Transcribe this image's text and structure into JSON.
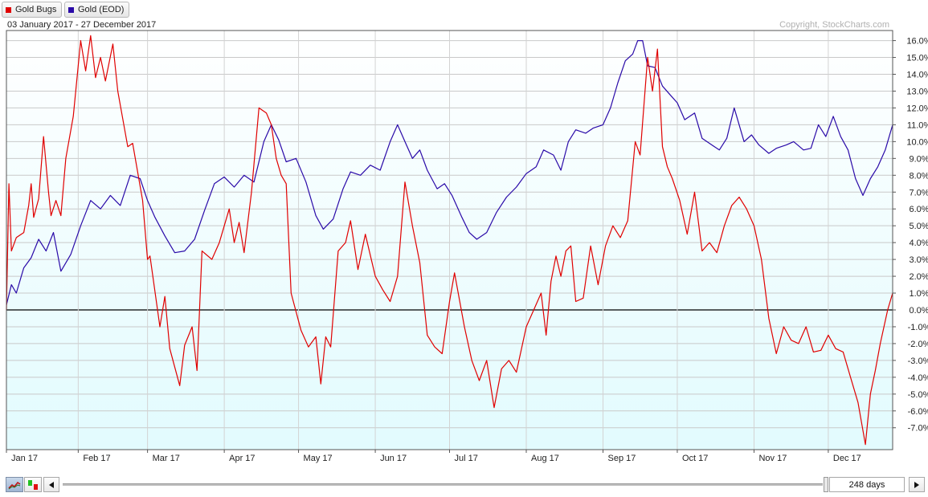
{
  "legend": [
    {
      "label": "Gold Bugs",
      "color": "#e00000"
    },
    {
      "label": "Gold (EOD)",
      "color": "#2a0aa8"
    }
  ],
  "date_range": "03 January 2017 - 27 December 2017",
  "copyright": "Copyright, StockCharts.com",
  "controls": {
    "days": "248 days",
    "scroll_left_icon": "triangle-left-icon",
    "scroll_right_icon": "triangle-right-icon",
    "line_chart_icon": "line-chart-icon",
    "candlestick_icon": "candlestick-icon"
  },
  "chart_data": {
    "type": "line",
    "ylim": [
      -8.3,
      16.6
    ],
    "y_ticks": [
      16,
      15,
      14,
      13,
      12,
      11,
      10,
      9,
      8,
      7,
      6,
      5,
      4,
      3,
      2,
      1,
      0,
      -1,
      -2,
      -3,
      -4,
      -5,
      -6,
      -7
    ],
    "y_tick_labels": [
      "16.0%",
      "15.0%",
      "14.0%",
      "13.0%",
      "12.0%",
      "11.0%",
      "10.0%",
      "9.0%",
      "8.0%",
      "7.0%",
      "6.0%",
      "5.0%",
      "4.0%",
      "3.0%",
      "2.0%",
      "1.0%",
      "0.0%",
      "-1.0%",
      "-2.0%",
      "-3.0%",
      "-4.0%",
      "-5.0%",
      "-6.0%",
      "-7.0%"
    ],
    "x_ticks": [
      "Jan 17",
      "Feb 17",
      "Mar 17",
      "Apr 17",
      "May 17",
      "Jun 17",
      "Jul 17",
      "Aug 17",
      "Sep 17",
      "Oct 17",
      "Nov 17",
      "Dec 17"
    ],
    "x_range": [
      "2017-01-03",
      "2017-12-27"
    ],
    "grid": true,
    "baseline": 0,
    "series": [
      {
        "name": "Gold Bugs",
        "color": "#e00000",
        "points": [
          [
            "2017-01-03",
            0.0
          ],
          [
            "2017-01-04",
            7.5
          ],
          [
            "2017-01-05",
            3.5
          ],
          [
            "2017-01-07",
            4.3
          ],
          [
            "2017-01-10",
            4.6
          ],
          [
            "2017-01-12",
            6.2
          ],
          [
            "2017-01-13",
            7.5
          ],
          [
            "2017-01-14",
            5.5
          ],
          [
            "2017-01-16",
            6.6
          ],
          [
            "2017-01-18",
            10.3
          ],
          [
            "2017-01-20",
            7.0
          ],
          [
            "2017-01-21",
            5.6
          ],
          [
            "2017-01-23",
            6.5
          ],
          [
            "2017-01-25",
            5.6
          ],
          [
            "2017-01-27",
            9.0
          ],
          [
            "2017-01-30",
            11.5
          ],
          [
            "2017-02-02",
            16.0
          ],
          [
            "2017-02-04",
            14.2
          ],
          [
            "2017-02-06",
            16.3
          ],
          [
            "2017-02-08",
            13.8
          ],
          [
            "2017-02-10",
            15.0
          ],
          [
            "2017-02-12",
            13.6
          ],
          [
            "2017-02-15",
            15.8
          ],
          [
            "2017-02-17",
            13.0
          ],
          [
            "2017-02-21",
            9.7
          ],
          [
            "2017-02-23",
            9.9
          ],
          [
            "2017-02-27",
            6.5
          ],
          [
            "2017-03-01",
            3.0
          ],
          [
            "2017-03-02",
            3.2
          ],
          [
            "2017-03-06",
            -1.0
          ],
          [
            "2017-03-08",
            0.8
          ],
          [
            "2017-03-10",
            -2.3
          ],
          [
            "2017-03-14",
            -4.5
          ],
          [
            "2017-03-16",
            -2.1
          ],
          [
            "2017-03-19",
            -1.0
          ],
          [
            "2017-03-21",
            -3.6
          ],
          [
            "2017-03-23",
            3.5
          ],
          [
            "2017-03-27",
            3.0
          ],
          [
            "2017-03-30",
            4.0
          ],
          [
            "2017-04-03",
            6.0
          ],
          [
            "2017-04-05",
            4.0
          ],
          [
            "2017-04-07",
            5.2
          ],
          [
            "2017-04-09",
            3.4
          ],
          [
            "2017-04-12",
            7.0
          ],
          [
            "2017-04-15",
            12.0
          ],
          [
            "2017-04-18",
            11.7
          ],
          [
            "2017-04-20",
            11.0
          ],
          [
            "2017-04-22",
            9.0
          ],
          [
            "2017-04-24",
            8.0
          ],
          [
            "2017-04-26",
            7.5
          ],
          [
            "2017-04-28",
            1.0
          ],
          [
            "2017-05-02",
            -1.2
          ],
          [
            "2017-05-05",
            -2.2
          ],
          [
            "2017-05-08",
            -1.6
          ],
          [
            "2017-05-10",
            -4.4
          ],
          [
            "2017-05-12",
            -1.6
          ],
          [
            "2017-05-14",
            -2.2
          ],
          [
            "2017-05-17",
            3.5
          ],
          [
            "2017-05-20",
            4.0
          ],
          [
            "2017-05-22",
            5.3
          ],
          [
            "2017-05-25",
            2.4
          ],
          [
            "2017-05-28",
            4.5
          ],
          [
            "2017-06-01",
            2.0
          ],
          [
            "2017-06-04",
            1.2
          ],
          [
            "2017-06-07",
            0.5
          ],
          [
            "2017-06-10",
            2.0
          ],
          [
            "2017-06-13",
            7.6
          ],
          [
            "2017-06-16",
            5.0
          ],
          [
            "2017-06-19",
            2.8
          ],
          [
            "2017-06-22",
            -1.5
          ],
          [
            "2017-06-25",
            -2.2
          ],
          [
            "2017-06-28",
            -2.6
          ],
          [
            "2017-07-01",
            0.5
          ],
          [
            "2017-07-03",
            2.2
          ],
          [
            "2017-07-07",
            -1.0
          ],
          [
            "2017-07-10",
            -3.0
          ],
          [
            "2017-07-13",
            -4.2
          ],
          [
            "2017-07-16",
            -3.0
          ],
          [
            "2017-07-19",
            -5.8
          ],
          [
            "2017-07-22",
            -3.5
          ],
          [
            "2017-07-25",
            -3.0
          ],
          [
            "2017-07-28",
            -3.7
          ],
          [
            "2017-08-01",
            -1.0
          ],
          [
            "2017-08-04",
            0.0
          ],
          [
            "2017-08-07",
            1.0
          ],
          [
            "2017-08-09",
            -1.5
          ],
          [
            "2017-08-11",
            1.7
          ],
          [
            "2017-08-13",
            3.2
          ],
          [
            "2017-08-15",
            2.0
          ],
          [
            "2017-08-17",
            3.5
          ],
          [
            "2017-08-19",
            3.8
          ],
          [
            "2017-08-21",
            0.5
          ],
          [
            "2017-08-24",
            0.7
          ],
          [
            "2017-08-27",
            3.8
          ],
          [
            "2017-08-30",
            1.5
          ],
          [
            "2017-09-02",
            3.8
          ],
          [
            "2017-09-05",
            5.0
          ],
          [
            "2017-09-08",
            4.3
          ],
          [
            "2017-09-11",
            5.3
          ],
          [
            "2017-09-14",
            10.0
          ],
          [
            "2017-09-16",
            9.2
          ],
          [
            "2017-09-19",
            15.0
          ],
          [
            "2017-09-21",
            13.0
          ],
          [
            "2017-09-23",
            15.5
          ],
          [
            "2017-09-25",
            9.7
          ],
          [
            "2017-09-27",
            8.5
          ],
          [
            "2017-09-29",
            7.8
          ],
          [
            "2017-10-02",
            6.5
          ],
          [
            "2017-10-05",
            4.5
          ],
          [
            "2017-10-08",
            7.0
          ],
          [
            "2017-10-11",
            3.5
          ],
          [
            "2017-10-14",
            4.0
          ],
          [
            "2017-10-17",
            3.4
          ],
          [
            "2017-10-20",
            5.0
          ],
          [
            "2017-10-23",
            6.2
          ],
          [
            "2017-10-26",
            6.7
          ],
          [
            "2017-10-29",
            6.0
          ],
          [
            "2017-11-01",
            5.0
          ],
          [
            "2017-11-04",
            3.0
          ],
          [
            "2017-11-07",
            -0.5
          ],
          [
            "2017-11-10",
            -2.6
          ],
          [
            "2017-11-13",
            -1.0
          ],
          [
            "2017-11-16",
            -1.8
          ],
          [
            "2017-11-19",
            -2.0
          ],
          [
            "2017-11-22",
            -1.0
          ],
          [
            "2017-11-25",
            -2.5
          ],
          [
            "2017-11-28",
            -2.4
          ],
          [
            "2017-12-01",
            -1.5
          ],
          [
            "2017-12-04",
            -2.3
          ],
          [
            "2017-12-07",
            -2.5
          ],
          [
            "2017-12-10",
            -4.0
          ],
          [
            "2017-12-13",
            -5.5
          ],
          [
            "2017-12-16",
            -8.0
          ],
          [
            "2017-12-18",
            -5.0
          ],
          [
            "2017-12-20",
            -3.6
          ],
          [
            "2017-12-22",
            -2.0
          ],
          [
            "2017-12-25",
            0.0
          ],
          [
            "2017-12-27",
            1.0
          ]
        ]
      },
      {
        "name": "Gold (EOD)",
        "color": "#2a0aa8",
        "points": [
          [
            "2017-01-03",
            0.3
          ],
          [
            "2017-01-05",
            1.5
          ],
          [
            "2017-01-07",
            1.0
          ],
          [
            "2017-01-10",
            2.5
          ],
          [
            "2017-01-13",
            3.1
          ],
          [
            "2017-01-16",
            4.2
          ],
          [
            "2017-01-19",
            3.5
          ],
          [
            "2017-01-22",
            4.6
          ],
          [
            "2017-01-25",
            2.3
          ],
          [
            "2017-01-29",
            3.3
          ],
          [
            "2017-02-02",
            5.0
          ],
          [
            "2017-02-06",
            6.5
          ],
          [
            "2017-02-10",
            6.0
          ],
          [
            "2017-02-14",
            6.8
          ],
          [
            "2017-02-18",
            6.2
          ],
          [
            "2017-02-22",
            8.0
          ],
          [
            "2017-02-26",
            7.8
          ],
          [
            "2017-03-01",
            6.5
          ],
          [
            "2017-03-04",
            5.5
          ],
          [
            "2017-03-08",
            4.4
          ],
          [
            "2017-03-12",
            3.4
          ],
          [
            "2017-03-16",
            3.5
          ],
          [
            "2017-03-20",
            4.2
          ],
          [
            "2017-03-24",
            5.9
          ],
          [
            "2017-03-28",
            7.5
          ],
          [
            "2017-04-01",
            7.9
          ],
          [
            "2017-04-05",
            7.3
          ],
          [
            "2017-04-09",
            8.0
          ],
          [
            "2017-04-13",
            7.6
          ],
          [
            "2017-04-17",
            10.0
          ],
          [
            "2017-04-20",
            11.0
          ],
          [
            "2017-04-23",
            10.1
          ],
          [
            "2017-04-26",
            8.8
          ],
          [
            "2017-04-30",
            9.0
          ],
          [
            "2017-05-04",
            7.6
          ],
          [
            "2017-05-08",
            5.6
          ],
          [
            "2017-05-11",
            4.8
          ],
          [
            "2017-05-15",
            5.4
          ],
          [
            "2017-05-19",
            7.2
          ],
          [
            "2017-05-22",
            8.2
          ],
          [
            "2017-05-26",
            8.0
          ],
          [
            "2017-05-30",
            8.6
          ],
          [
            "2017-06-03",
            8.3
          ],
          [
            "2017-06-07",
            10.0
          ],
          [
            "2017-06-10",
            11.0
          ],
          [
            "2017-06-13",
            10.0
          ],
          [
            "2017-06-16",
            9.0
          ],
          [
            "2017-06-19",
            9.5
          ],
          [
            "2017-06-22",
            8.3
          ],
          [
            "2017-06-26",
            7.2
          ],
          [
            "2017-06-29",
            7.5
          ],
          [
            "2017-07-02",
            6.8
          ],
          [
            "2017-07-06",
            5.5
          ],
          [
            "2017-07-09",
            4.6
          ],
          [
            "2017-07-12",
            4.2
          ],
          [
            "2017-07-16",
            4.6
          ],
          [
            "2017-07-20",
            5.8
          ],
          [
            "2017-07-24",
            6.7
          ],
          [
            "2017-07-28",
            7.3
          ],
          [
            "2017-08-01",
            8.1
          ],
          [
            "2017-08-05",
            8.5
          ],
          [
            "2017-08-08",
            9.5
          ],
          [
            "2017-08-12",
            9.2
          ],
          [
            "2017-08-15",
            8.3
          ],
          [
            "2017-08-18",
            10.0
          ],
          [
            "2017-08-21",
            10.7
          ],
          [
            "2017-08-25",
            10.5
          ],
          [
            "2017-08-28",
            10.8
          ],
          [
            "2017-09-01",
            11.0
          ],
          [
            "2017-09-04",
            12.0
          ],
          [
            "2017-09-07",
            13.5
          ],
          [
            "2017-09-10",
            14.8
          ],
          [
            "2017-09-13",
            15.2
          ],
          [
            "2017-09-15",
            16.0
          ],
          [
            "2017-09-17",
            16.0
          ],
          [
            "2017-09-19",
            14.5
          ],
          [
            "2017-09-22",
            14.4
          ],
          [
            "2017-09-25",
            13.3
          ],
          [
            "2017-09-28",
            12.8
          ],
          [
            "2017-10-01",
            12.3
          ],
          [
            "2017-10-04",
            11.3
          ],
          [
            "2017-10-08",
            11.7
          ],
          [
            "2017-10-11",
            10.2
          ],
          [
            "2017-10-15",
            9.8
          ],
          [
            "2017-10-18",
            9.5
          ],
          [
            "2017-10-21",
            10.2
          ],
          [
            "2017-10-24",
            12.0
          ],
          [
            "2017-10-28",
            10.0
          ],
          [
            "2017-10-31",
            10.4
          ],
          [
            "2017-11-03",
            9.8
          ],
          [
            "2017-11-07",
            9.3
          ],
          [
            "2017-11-10",
            9.6
          ],
          [
            "2017-11-14",
            9.8
          ],
          [
            "2017-11-17",
            10.0
          ],
          [
            "2017-11-21",
            9.5
          ],
          [
            "2017-11-24",
            9.6
          ],
          [
            "2017-11-27",
            11.0
          ],
          [
            "2017-11-30",
            10.3
          ],
          [
            "2017-12-03",
            11.5
          ],
          [
            "2017-12-06",
            10.3
          ],
          [
            "2017-12-09",
            9.5
          ],
          [
            "2017-12-12",
            7.8
          ],
          [
            "2017-12-15",
            6.8
          ],
          [
            "2017-12-18",
            7.8
          ],
          [
            "2017-12-21",
            8.5
          ],
          [
            "2017-12-24",
            9.5
          ],
          [
            "2017-12-27",
            11.0
          ]
        ]
      }
    ]
  }
}
